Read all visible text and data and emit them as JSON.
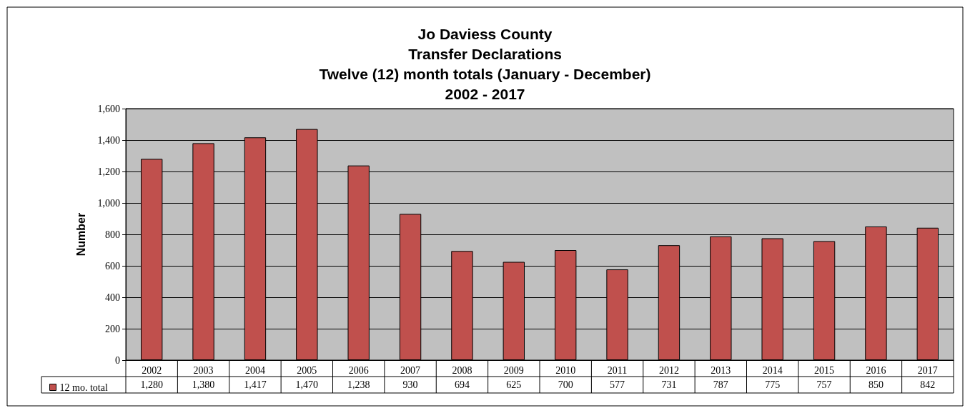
{
  "chart_data": {
    "type": "bar",
    "title": "Jo Daviess County\nTransfer Declarations\nTwelve (12) month totals (January - December)\n2002 - 2017",
    "ylabel": "Number",
    "categories": [
      "2002",
      "2003",
      "2004",
      "2005",
      "2006",
      "2007",
      "2008",
      "2009",
      "2010",
      "2011",
      "2012",
      "2013",
      "2014",
      "2015",
      "2016",
      "2017"
    ],
    "series": [
      {
        "name": "12 mo. total",
        "color": "#c0504d",
        "values": [
          1280,
          1380,
          1417,
          1470,
          1238,
          930,
          694,
          625,
          700,
          577,
          731,
          787,
          775,
          757,
          850,
          842
        ],
        "value_labels": [
          "1,280",
          "1,380",
          "1,417",
          "1,470",
          "1,238",
          "930",
          "694",
          "625",
          "700",
          "577",
          "731",
          "787",
          "775",
          "757",
          "850",
          "842"
        ]
      }
    ],
    "ylim": [
      0,
      1600
    ],
    "yticks": [
      0,
      200,
      400,
      600,
      800,
      {
        "value": 1000,
        "label": "1,000"
      },
      {
        "value": 1200,
        "label": "1,200"
      },
      {
        "value": 1400,
        "label": "1,400"
      },
      {
        "value": 1600,
        "label": "1,600"
      }
    ],
    "grid": "y",
    "legend": "bottom"
  }
}
